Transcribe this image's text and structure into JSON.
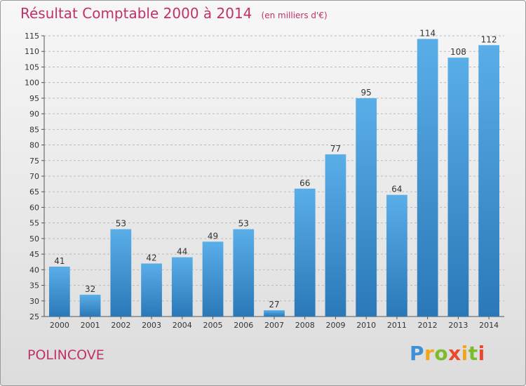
{
  "title": "Résultat Comptable 2000 à 2014",
  "subtitle": "(en milliers d'€)",
  "commune": "POLINCOVE",
  "brand": "Proxiti",
  "colors": {
    "title": "#c0306a",
    "bar_top": "#5aaee8",
    "bar_bottom": "#2a78b8",
    "grid": "#bbbbbb"
  },
  "chart_data": {
    "type": "bar",
    "title": "Résultat Comptable 2000 à 2014",
    "subtitle": "(en milliers d'€)",
    "categories": [
      "2000",
      "2001",
      "2002",
      "2003",
      "2004",
      "2005",
      "2006",
      "2007",
      "2008",
      "2009",
      "2010",
      "2011",
      "2012",
      "2013",
      "2014"
    ],
    "values": [
      41,
      32,
      53,
      42,
      44,
      49,
      53,
      27,
      66,
      77,
      95,
      64,
      114,
      108,
      112
    ],
    "ylim": [
      25,
      115
    ],
    "yticks": [
      25,
      30,
      35,
      40,
      45,
      50,
      55,
      60,
      65,
      70,
      75,
      80,
      85,
      90,
      95,
      100,
      105,
      110,
      115
    ],
    "grid": true,
    "data_labels": true
  }
}
